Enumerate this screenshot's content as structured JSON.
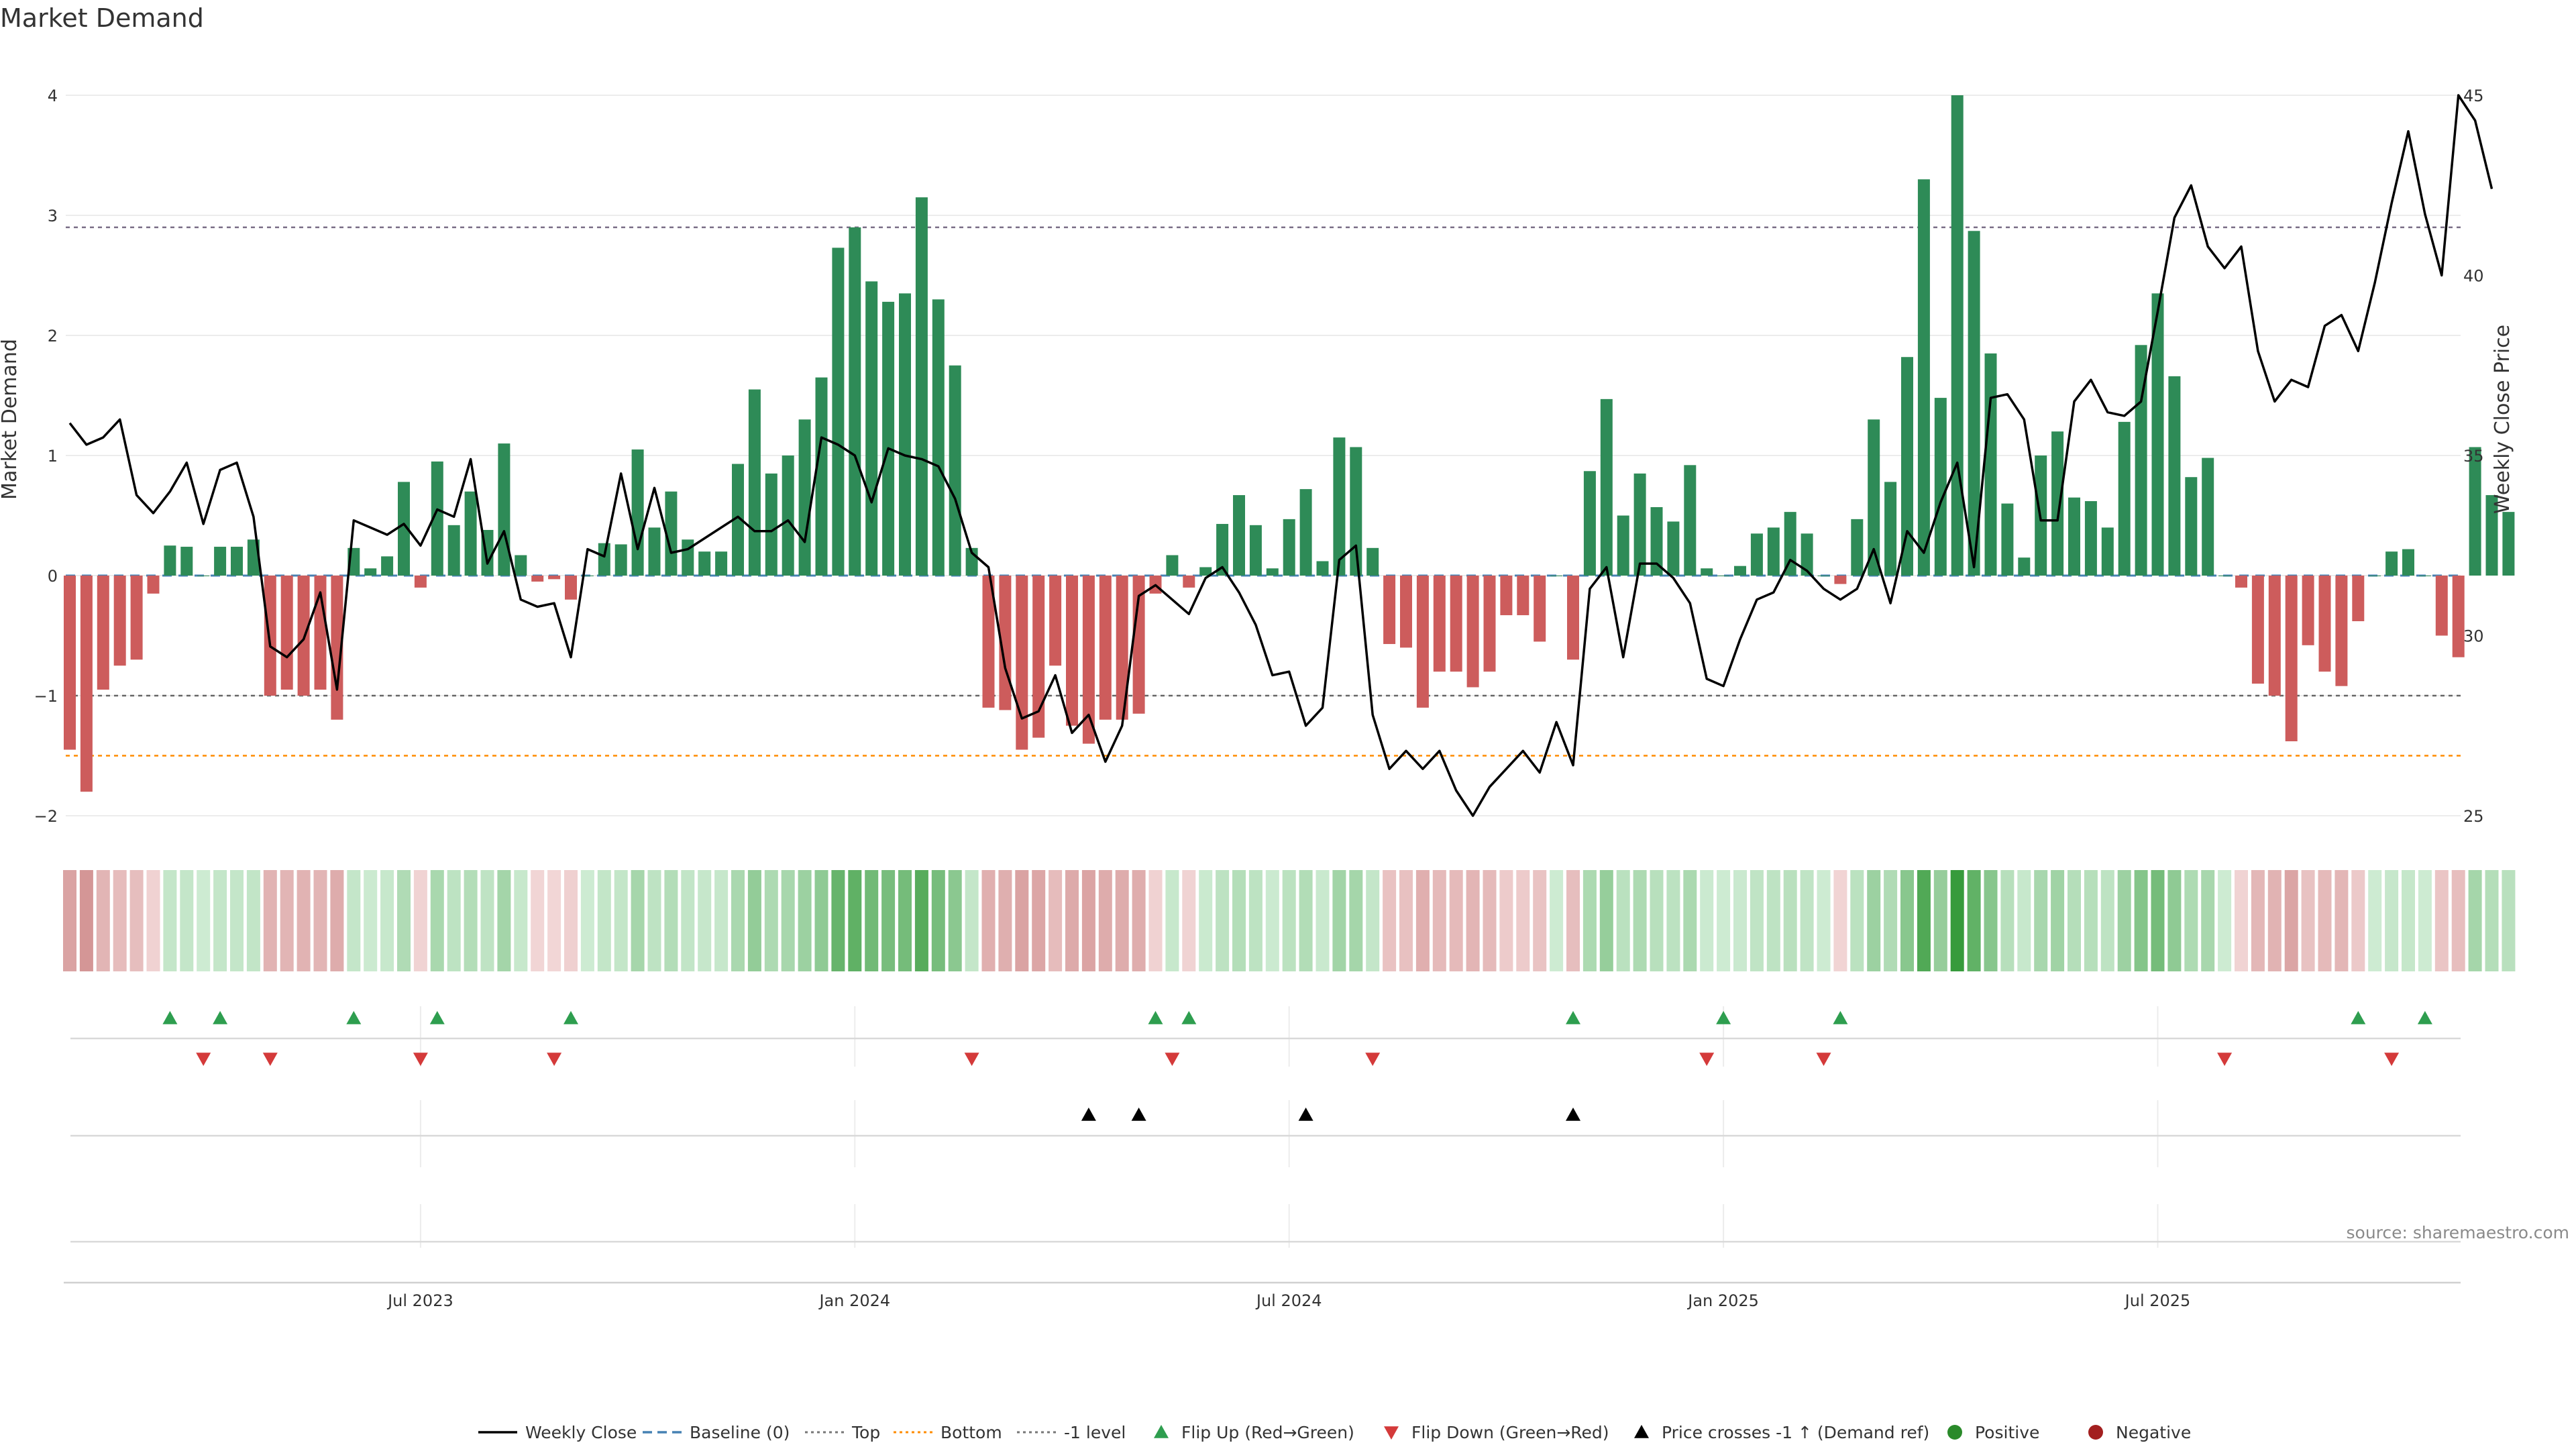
{
  "chart_data": {
    "type": "bar",
    "title": "Market Demand",
    "ylabel_left": "Market Demand",
    "ylabel_right": "Weekly Close Price",
    "left_ylim": [
      -2.0,
      4.0
    ],
    "right_ylim": [
      25,
      45
    ],
    "left_ticks": [
      -2,
      -1,
      0,
      1,
      2,
      3,
      4
    ],
    "left_tick_labels": [
      "−2",
      "−1",
      "0",
      "1",
      "2",
      "3",
      "4"
    ],
    "right_ticks": [
      25,
      30,
      35,
      40,
      45
    ],
    "right_tick_labels": [
      "25",
      "30",
      "35",
      "40",
      "45"
    ],
    "x_tick_index": [
      21,
      47,
      73,
      99,
      125
    ],
    "x_tick_labels": [
      "Jul 2023",
      "Jan 2024",
      "Jul 2024",
      "Jan 2025",
      "Jul 2025"
    ],
    "reference_lines": {
      "top": 2.9,
      "bottom": -1.5,
      "minus_one": -1.0,
      "baseline": 0
    },
    "demand": [
      -1.45,
      -1.8,
      -0.95,
      -0.75,
      -0.7,
      -0.15,
      0.25,
      0.24,
      0.0,
      0.24,
      0.24,
      0.3,
      -1.0,
      -0.95,
      -1.0,
      -0.95,
      -1.2,
      0.23,
      0.06,
      0.16,
      0.78,
      -0.1,
      0.95,
      0.42,
      0.7,
      0.38,
      1.1,
      0.17,
      -0.05,
      -0.03,
      -0.2,
      0.0,
      0.27,
      0.26,
      1.05,
      0.4,
      0.7,
      0.3,
      0.2,
      0.2,
      0.93,
      1.55,
      0.85,
      1.0,
      1.3,
      1.65,
      2.73,
      2.9,
      2.45,
      2.28,
      2.35,
      3.15,
      2.3,
      1.75,
      0.23,
      -1.1,
      -1.12,
      -1.45,
      -1.35,
      -0.75,
      -1.25,
      -1.4,
      -1.2,
      -1.2,
      -1.15,
      -0.15,
      0.17,
      -0.1,
      0.07,
      0.43,
      0.67,
      0.42,
      0.06,
      0.47,
      0.72,
      0.12,
      1.15,
      1.07,
      0.23,
      -0.57,
      -0.6,
      -1.1,
      -0.8,
      -0.8,
      -0.93,
      -0.8,
      -0.33,
      -0.33,
      -0.55,
      0.0,
      -0.7,
      0.87,
      1.47,
      0.5,
      0.85,
      0.57,
      0.45,
      0.92,
      0.06,
      0.0,
      0.08,
      0.35,
      0.4,
      0.53,
      0.35,
      0.0,
      -0.07,
      0.47,
      1.3,
      0.78,
      1.82,
      3.3,
      1.48,
      4.0,
      2.87,
      1.85,
      0.6,
      0.15,
      1.0,
      1.2,
      0.65,
      0.62,
      0.4,
      1.28,
      1.92,
      2.35,
      1.66,
      0.82,
      0.98,
      0.0,
      -0.1,
      -0.9,
      -1.0,
      -1.38,
      -0.58,
      -0.8,
      -0.92,
      -0.38,
      0.0,
      0.2,
      0.22,
      0.0,
      -0.5,
      -0.68,
      1.07,
      0.67,
      0.53
    ],
    "close": [
      35.9,
      35.3,
      35.5,
      36.0,
      33.9,
      33.4,
      34.0,
      34.8,
      33.1,
      34.6,
      34.8,
      33.3,
      29.7,
      29.4,
      29.9,
      31.2,
      28.5,
      33.2,
      33.0,
      32.8,
      33.1,
      32.5,
      33.5,
      33.3,
      34.9,
      32.0,
      32.9,
      31.0,
      30.8,
      30.9,
      29.4,
      32.4,
      32.2,
      34.5,
      32.4,
      34.1,
      32.3,
      32.4,
      32.7,
      33.0,
      33.3,
      32.9,
      32.9,
      33.2,
      32.6,
      35.5,
      35.3,
      35.0,
      33.7,
      35.2,
      35.0,
      34.9,
      34.7,
      33.8,
      32.3,
      31.9,
      29.1,
      27.7,
      27.9,
      28.9,
      27.3,
      27.8,
      26.5,
      27.5,
      31.1,
      31.4,
      31.0,
      30.6,
      31.6,
      31.9,
      31.2,
      30.3,
      28.9,
      29.0,
      27.5,
      28.0,
      32.1,
      32.5,
      27.8,
      26.3,
      26.8,
      26.3,
      26.8,
      25.7,
      25.0,
      25.8,
      26.3,
      26.8,
      26.2,
      27.6,
      26.4,
      31.3,
      31.9,
      29.4,
      32.0,
      32.0,
      31.6,
      30.9,
      28.8,
      28.6,
      29.9,
      31.0,
      31.2,
      32.1,
      31.8,
      31.3,
      31.0,
      31.3,
      32.4,
      30.9,
      32.9,
      32.3,
      33.7,
      34.8,
      31.9,
      36.6,
      36.7,
      36.0,
      33.2,
      33.2,
      36.5,
      37.1,
      36.2,
      36.1,
      36.5,
      39.0,
      41.6,
      42.5,
      40.8,
      40.2,
      40.8,
      37.9,
      36.5,
      37.1,
      36.9,
      38.6,
      38.9,
      37.9,
      39.8,
      42.0,
      44.0,
      41.7,
      40.0,
      45.0,
      44.3,
      42.4
    ],
    "flip_up_index": [
      6,
      9,
      17,
      22,
      30,
      65,
      67,
      90,
      99,
      106,
      137,
      141
    ],
    "flip_down_index": [
      8,
      12,
      21,
      29,
      54,
      66,
      78,
      98,
      105,
      129,
      139
    ],
    "price_cross_index": [
      61,
      64,
      74,
      90
    ],
    "legend": [
      {
        "label": "Weekly Close",
        "kind": "line",
        "color": "#000000"
      },
      {
        "label": "Baseline (0)",
        "kind": "dash",
        "color": "#4682b4"
      },
      {
        "label": "Top",
        "kind": "dot",
        "color": "#777777"
      },
      {
        "label": "Bottom",
        "kind": "dot",
        "color": "#ff8c00"
      },
      {
        "label": "-1 level",
        "kind": "dot",
        "color": "#777777"
      },
      {
        "label": "Flip Up (Red→Green)",
        "kind": "tri-up",
        "color": "#2e9e4f"
      },
      {
        "label": "Flip Down (Green→Red)",
        "kind": "tri-down",
        "color": "#d43a3a"
      },
      {
        "label": "Price crosses -1 ↑ (Demand ref)",
        "kind": "tri-up",
        "color": "#000000"
      },
      {
        "label": "Positive",
        "kind": "dot-marker",
        "color": "#2a8a2a"
      },
      {
        "label": "Negative",
        "kind": "dot-marker",
        "color": "#a31f1f"
      }
    ],
    "source": "source: sharemaestro.com"
  },
  "colors": {
    "positive": "#2e8b57",
    "negative": "#cd5c5c",
    "baseline": "#4682b4",
    "grid": "#ececec"
  }
}
